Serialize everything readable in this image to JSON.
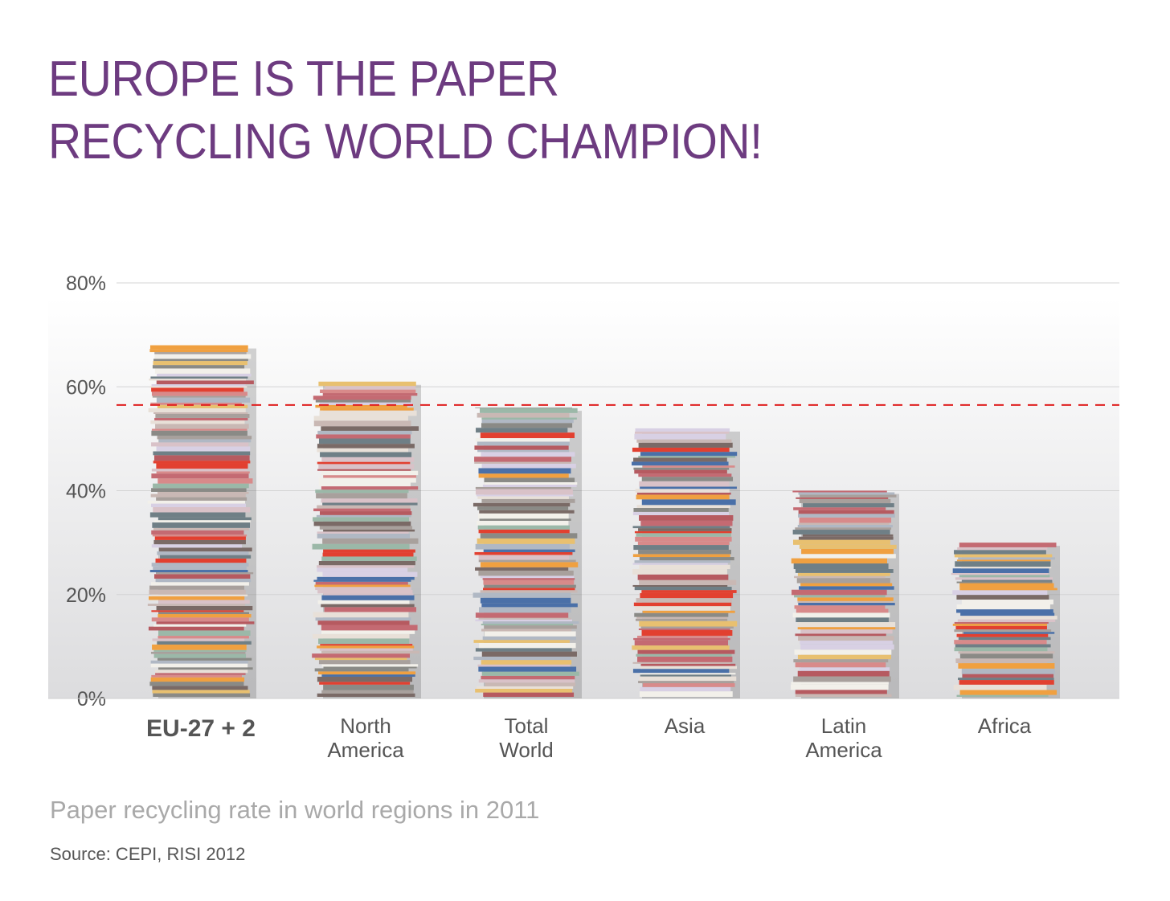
{
  "title_lines": [
    "EUROPE IS THE PAPER",
    "RECYCLING WORLD CHAMPION!"
  ],
  "subtitle": "Paper recycling rate in world regions in 2011",
  "source": "Source: CEPI, RISI 2012",
  "colors": {
    "title": "#6d3b80",
    "reference_line": "#e02020",
    "axis_text": "#555555"
  },
  "chart_data": {
    "type": "bar",
    "categories": [
      [
        "EU-27 + 2"
      ],
      [
        "North",
        "America"
      ],
      [
        "Total",
        "World"
      ],
      [
        "Asia"
      ],
      [
        "Latin",
        "America"
      ],
      [
        "Africa"
      ]
    ],
    "highlight_category": "EU-27 + 2",
    "values": [
      68,
      61,
      56,
      52,
      40,
      30
    ],
    "unit": "%",
    "ylim": [
      0,
      80
    ],
    "yticks": [
      "0%",
      "20%",
      "40%",
      "60%",
      "80%"
    ],
    "reference_line": {
      "value": 56.5,
      "style": "dashed",
      "color": "#e02020"
    },
    "grid": true,
    "bar_style": "stacks of paper"
  }
}
